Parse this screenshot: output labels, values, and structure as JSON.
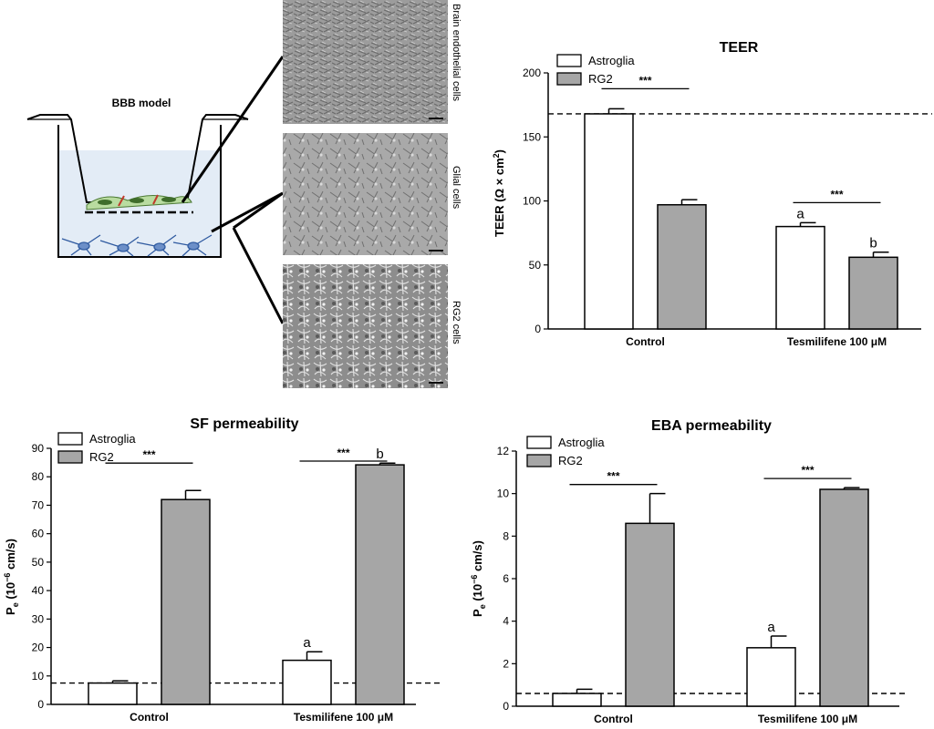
{
  "diagram": {
    "title": "BBB model",
    "micrograph_labels": [
      "Brain endothelial cells",
      "Glial cells",
      "RG2 cells"
    ]
  },
  "colors": {
    "astroglia_fill": "#ffffff",
    "rg2_fill": "#a6a6a6",
    "bar_stroke": "#000000"
  },
  "chart_data": [
    {
      "type": "bar",
      "title": "TEER",
      "ylabel_main": "TEER (Ω × cm",
      "ylabel_sup": "2",
      "ylabel_end": ")",
      "xlabel": "",
      "ylim": [
        0,
        200
      ],
      "yticks": [
        0,
        50,
        100,
        150,
        200
      ],
      "categories": [
        "Control",
        "Tesmilifene 100 μM"
      ],
      "series": [
        {
          "name": "Astroglia",
          "values": [
            168,
            80
          ],
          "errors": [
            4,
            3
          ],
          "letters": [
            "",
            "a"
          ]
        },
        {
          "name": "RG2",
          "values": [
            97,
            56
          ],
          "errors": [
            4,
            4
          ],
          "letters": [
            "",
            "b"
          ]
        }
      ],
      "significance": [
        "***",
        "***"
      ],
      "reference_line": 168,
      "legend": "top-left",
      "grid": false
    },
    {
      "type": "bar",
      "title": "SF permeability",
      "ylabel_main": "P",
      "ylabel_sub": "e",
      "ylabel_unit": " (10",
      "ylabel_exp": "−6",
      "ylabel_end": " cm/s)",
      "xlabel": "",
      "ylim": [
        0,
        90
      ],
      "yticks": [
        0,
        10,
        20,
        30,
        40,
        50,
        60,
        70,
        80,
        90
      ],
      "categories": [
        "Control",
        "Tesmilifene 100 μM"
      ],
      "series": [
        {
          "name": "Astroglia",
          "values": [
            7.5,
            15.5
          ],
          "errors": [
            0.8,
            3.0
          ],
          "letters": [
            "",
            "a"
          ]
        },
        {
          "name": "RG2",
          "values": [
            72,
            84.2
          ],
          "errors": [
            3.2,
            0.6
          ],
          "letters": [
            "",
            "b"
          ]
        }
      ],
      "significance": [
        "***",
        "***"
      ],
      "reference_line": 7.5,
      "legend": "top-left",
      "grid": false
    },
    {
      "type": "bar",
      "title": "EBA permeability",
      "ylabel_main": "P",
      "ylabel_sub": "e",
      "ylabel_unit": " (10",
      "ylabel_exp": "−6",
      "ylabel_end": " cm/s)",
      "xlabel": "",
      "ylim": [
        0,
        12
      ],
      "yticks": [
        0,
        2,
        4,
        6,
        8,
        10,
        12
      ],
      "categories": [
        "Control",
        "Tesmilifene 100 μM"
      ],
      "series": [
        {
          "name": "Astroglia",
          "values": [
            0.6,
            2.75
          ],
          "errors": [
            0.2,
            0.55
          ],
          "letters": [
            "",
            "a"
          ]
        },
        {
          "name": "RG2",
          "values": [
            8.6,
            10.2
          ],
          "errors": [
            1.4,
            0.08
          ],
          "letters": [
            "",
            ""
          ]
        }
      ],
      "significance": [
        "***",
        "***"
      ],
      "reference_line": 0.6,
      "legend": "top-left",
      "grid": false
    }
  ]
}
